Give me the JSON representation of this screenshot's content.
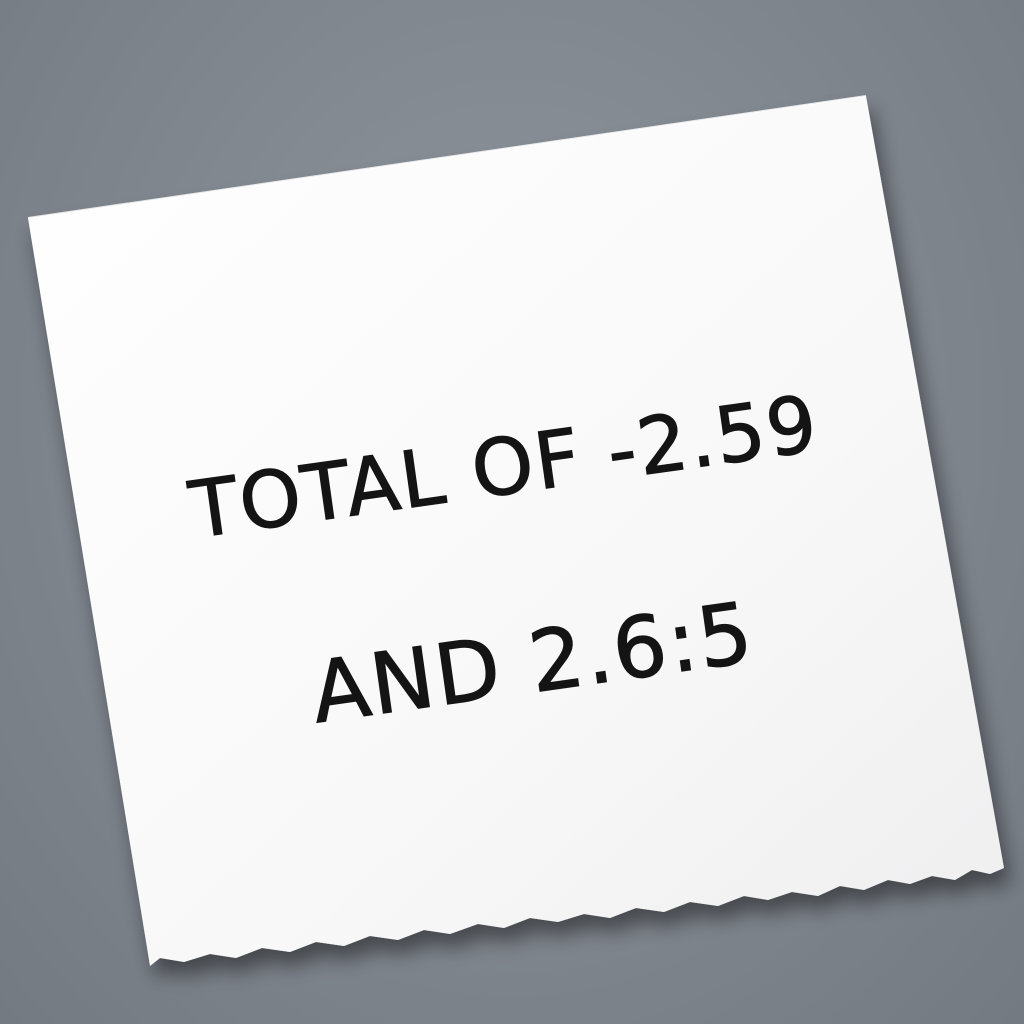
{
  "note": {
    "line1": "TOTAL OF -2.59",
    "line2": "AND 2.6:5"
  },
  "colors": {
    "background": "#80868e",
    "paper": "#fbfbfb",
    "ink": "#141414"
  }
}
